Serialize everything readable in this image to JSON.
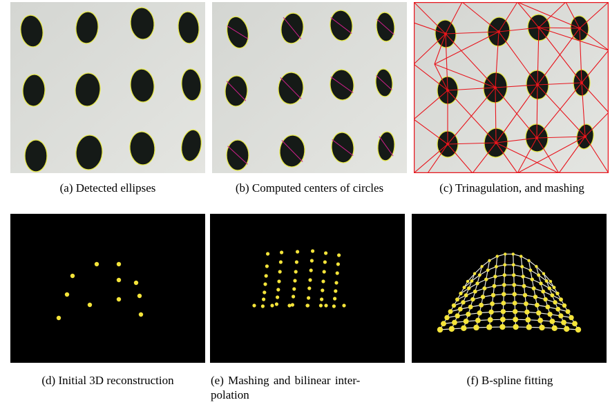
{
  "figure": {
    "panels": [
      {
        "id": "a",
        "caption": "(a)  Detected ellipses",
        "content": "photo of white board with 12 black elliptical holes, yellow outlines"
      },
      {
        "id": "b",
        "caption": "(b)  Computed centers of circles",
        "content": "same board with magenta center-diameter lines"
      },
      {
        "id": "c",
        "caption": "(c)  Trinagulation, and mashing",
        "content": "same board with red triangulation mesh"
      },
      {
        "id": "d",
        "caption": "(d)  Initial 3D reconstruction",
        "content": "black background with yellow points"
      },
      {
        "id": "e",
        "caption_line1": "(e)  Mashing  and  bilinear  inter-",
        "caption_line2": "polation",
        "content": "black background with denser yellow point grid"
      },
      {
        "id": "f",
        "caption": "(f)  B-spline fitting",
        "content": "black background with yellow spline surface mesh"
      }
    ]
  },
  "colors": {
    "board": "#d9dbd6",
    "hole": "#151a17",
    "ellipse_outline": "#e6e84a",
    "center_line": "#d0208a",
    "mesh": "#e8141c",
    "point": "#f4e43a",
    "spline_line": "#e8e8e0",
    "background_3d": "#000000"
  }
}
